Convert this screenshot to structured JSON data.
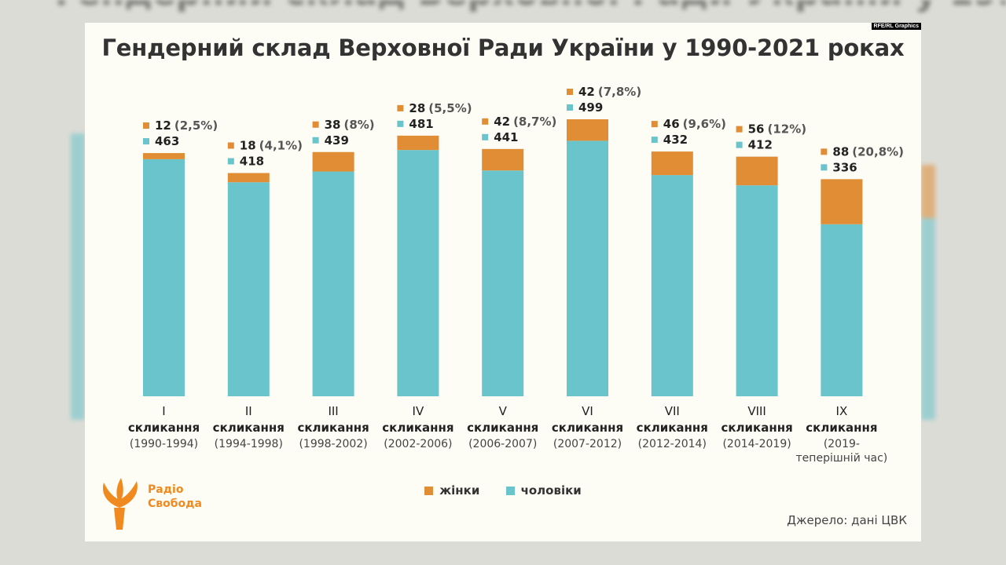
{
  "colors": {
    "women": "#e18d35",
    "men": "#69c4cc",
    "logo": "#f08a1f"
  },
  "chart": {
    "title": "Гендерний склад Верховної Ради України у 1990-2021 роках",
    "source_tag": "RFE/RL Graphics",
    "source_note": "Джерело: дані ЦВК"
  },
  "legend": {
    "women": "жінки",
    "men": "чоловіки"
  },
  "logo": {
    "line1": "Радіо",
    "line2": "Свобода"
  },
  "chart_data": {
    "type": "bar",
    "stacked": true,
    "title": "Гендерний склад Верховної Ради України у 1990-2021 роках",
    "categories": [
      {
        "roman": "I",
        "label": "скликання",
        "period": [
          "(1990-1994)"
        ]
      },
      {
        "roman": "II",
        "label": "скликання",
        "period": [
          "(1994-1998)"
        ]
      },
      {
        "roman": "III",
        "label": "скликання",
        "period": [
          "(1998-2002)"
        ]
      },
      {
        "roman": "IV",
        "label": "скликання",
        "period": [
          "(2002-2006)"
        ]
      },
      {
        "roman": "V",
        "label": "скликання",
        "period": [
          "(2006-2007)"
        ]
      },
      {
        "roman": "VI",
        "label": "скликання",
        "period": [
          "(2007-2012)"
        ]
      },
      {
        "roman": "VII",
        "label": "скликання",
        "period": [
          "(2012-2014)"
        ]
      },
      {
        "roman": "VIII",
        "label": "скликання",
        "period": [
          "(2014-2019)"
        ]
      },
      {
        "roman": "IX",
        "label": "скликання",
        "period": [
          "(2019-",
          "теперішній час)"
        ]
      }
    ],
    "series": [
      {
        "name": "чоловіки",
        "values": [
          463,
          418,
          439,
          481,
          441,
          499,
          432,
          412,
          336
        ]
      },
      {
        "name": "жінки",
        "values": [
          12,
          18,
          38,
          28,
          42,
          42,
          46,
          56,
          88
        ],
        "labels": [
          "(2,5%)",
          "(4,1%)",
          "(8%)",
          "(5,5%)",
          "(8,7%)",
          "(7,8%)",
          "(9,6%)",
          "(12%)",
          "(20,8%)"
        ]
      }
    ],
    "ylim": [
      0,
      541
    ],
    "legend_position": "bottom",
    "grid": false
  }
}
